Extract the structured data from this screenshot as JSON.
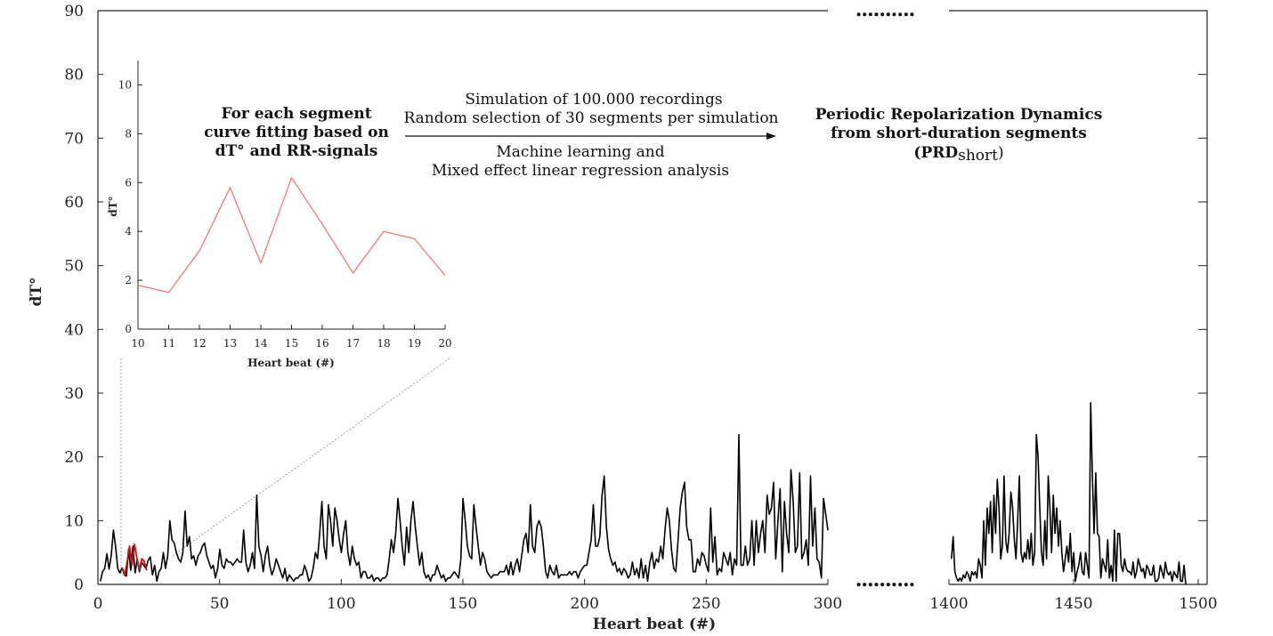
{
  "chart_data": [
    {
      "type": "line",
      "ylabel": "dT°",
      "xlabel": "Heart beat (#)",
      "ylim": [
        0,
        90
      ],
      "y_ticks": [
        "0",
        "10",
        "20",
        "30",
        "40",
        "50",
        "60",
        "70",
        "80",
        "90"
      ],
      "x_ticks_left": [
        "0",
        "50",
        "100",
        "150",
        "200",
        "250",
        "300"
      ],
      "x_ticks_right": [
        "1400",
        "1450",
        "1500"
      ],
      "break_marker": "..........",
      "colors": {
        "signal": "#000000",
        "segment": "#cc1111"
      },
      "series_left": {
        "x_start": 1,
        "values": [
          0.5,
          2,
          2.5,
          4.8,
          2.4,
          4.5,
          8.5,
          6,
          2.5,
          1.8,
          2.6,
          1.5,
          1.3,
          5.5,
          2.2,
          6,
          1.8,
          4,
          2,
          3.5,
          3,
          2.5,
          3.8,
          4.3,
          1.5,
          3,
          0.5,
          2,
          2.5,
          5,
          2.5,
          4.5,
          10,
          7,
          6.5,
          5,
          4,
          3.5,
          5,
          11.5,
          6,
          7.5,
          4,
          4.5,
          3,
          4.5,
          5,
          6,
          6.5,
          4.5,
          3.5,
          2.5,
          3,
          1,
          2.5,
          5.5,
          3,
          2.5,
          4,
          3.5,
          3.5,
          3,
          3.5,
          4,
          3.5,
          3.5,
          8.5,
          3.5,
          2,
          3,
          5,
          2.5,
          14,
          6,
          4.5,
          2,
          4.5,
          6,
          3,
          1.5,
          2.5,
          4,
          3,
          2,
          1,
          2.5,
          0.5,
          1.5,
          1,
          0.5,
          1,
          1,
          1.5,
          1.5,
          3,
          2,
          0.5,
          1,
          2.5,
          5,
          4,
          8,
          13,
          6,
          4,
          12.5,
          10,
          6,
          12,
          10,
          7,
          5,
          8,
          10,
          5,
          3,
          6,
          4,
          3,
          3.5,
          1,
          2,
          2,
          1,
          1,
          1.5,
          0.5,
          1,
          1,
          0.5,
          1,
          1,
          1.5,
          4,
          7,
          5,
          8,
          13.5,
          10,
          6,
          3,
          9,
          5,
          10,
          13,
          9,
          6,
          3,
          5,
          2,
          1,
          1.5,
          0.5,
          1.5,
          1.5,
          3,
          2,
          1,
          1.5,
          0.5,
          1,
          1,
          1.5,
          2,
          1.5,
          1,
          4,
          13.5,
          10,
          6,
          4.5,
          4,
          12.5,
          9,
          6,
          3,
          5,
          4,
          2,
          1.5,
          1,
          1.5,
          1.5,
          1.5,
          2,
          2,
          2,
          3,
          1.5,
          3.5,
          1.5,
          3,
          4,
          2,
          4.5,
          7,
          8,
          5,
          12.5,
          6,
          5,
          9,
          10,
          9,
          6,
          2,
          1,
          3,
          2,
          1.5,
          3,
          1,
          1.5,
          1.5,
          1.5,
          1.5,
          2,
          1.5,
          2,
          2,
          1,
          2,
          2.5,
          3,
          3,
          5,
          7,
          12.5,
          6,
          6,
          7.5,
          14,
          17,
          9,
          5.5,
          4,
          3,
          3.5,
          2,
          2.5,
          1.5,
          2.5,
          2,
          1,
          1.5,
          3.5,
          1.5,
          2.5,
          1,
          4,
          1,
          3,
          0.5,
          3.5,
          5,
          2.5,
          4,
          3.5,
          6,
          4,
          8.5,
          12,
          10,
          5.5,
          2.5,
          2,
          7,
          12,
          14.5,
          16,
          9,
          7,
          7,
          2,
          2,
          4,
          3,
          5,
          4.5,
          3,
          2,
          12,
          3.5,
          7.5,
          1.5,
          2.5,
          2,
          5,
          4,
          3,
          5,
          1.5,
          4,
          3,
          23.5,
          3,
          3,
          6,
          3,
          4,
          10,
          3,
          10,
          5,
          8,
          10,
          5,
          14,
          11,
          12,
          16,
          4,
          10,
          15,
          2,
          13,
          8,
          5,
          18,
          13,
          5,
          6,
          17.5,
          4,
          5,
          7,
          3,
          17,
          6,
          12,
          4,
          3.5,
          1,
          13.5,
          11,
          8.5
        ]
      },
      "segment": {
        "x": [
          10,
          11,
          12,
          13,
          14,
          15,
          16,
          17,
          18,
          19,
          20
        ],
        "values": [
          2.6,
          1.5,
          3.5,
          6,
          3,
          6.3,
          4.2,
          2.3,
          4,
          3.7,
          2.2
        ]
      },
      "series_right": {
        "x_start": 1401,
        "values": [
          4,
          7.5,
          2,
          1,
          0.5,
          1,
          0.5,
          1.5,
          1,
          2,
          1.5,
          0.5,
          2,
          1.5,
          2,
          1,
          4,
          3,
          1,
          10,
          3,
          12,
          8,
          13,
          5,
          14,
          8,
          16.5,
          12,
          4,
          6,
          17,
          7,
          5,
          8,
          14.5,
          12,
          7,
          4,
          10,
          17,
          5,
          3.5,
          5,
          4,
          7,
          4,
          8,
          3,
          5,
          23.5,
          20,
          12,
          5,
          3,
          10,
          4,
          17,
          12,
          5,
          14,
          8,
          12,
          6,
          10,
          5,
          2,
          4,
          6,
          3.5,
          8,
          2,
          5,
          0.5,
          2,
          3,
          5,
          2,
          1.5,
          5,
          3,
          1,
          28.5,
          17,
          8,
          17.5,
          8,
          7.5,
          1,
          4,
          3,
          2,
          7,
          1,
          3,
          0.5,
          8.5,
          0.5,
          8,
          8,
          3,
          2,
          4,
          2.5,
          2,
          2,
          1.5,
          3.5,
          1,
          2,
          4,
          3,
          2,
          2.5,
          1,
          3,
          2.5,
          1.5,
          1.5,
          3,
          0.5,
          0.5,
          1,
          3,
          2,
          1,
          3.5,
          2,
          1.5,
          2,
          0.5,
          2,
          1.5,
          1,
          3.5,
          0.5,
          0.5,
          3,
          0
        ]
      }
    },
    {
      "type": "line",
      "title": "",
      "xlabel": "Heart beat (#)",
      "ylabel": "dT°",
      "xlim": [
        10,
        20
      ],
      "ylim": [
        0,
        11
      ],
      "x_ticks": [
        "10",
        "11",
        "12",
        "13",
        "14",
        "15",
        "16",
        "17",
        "18",
        "19",
        "20"
      ],
      "y_ticks": [
        "0",
        "2",
        "4",
        "6",
        "8",
        "10"
      ],
      "colors": {
        "line": "#f08080"
      },
      "x": [
        10,
        11,
        12,
        13,
        14,
        15,
        16,
        17,
        18,
        19,
        20
      ],
      "values": [
        1.8,
        1.5,
        3.2,
        5.8,
        2.7,
        6.2,
        4.3,
        2.3,
        4,
        3.7,
        2.2
      ]
    }
  ],
  "annotations": {
    "left_block": [
      "For each segment",
      "curve fitting based on",
      "dT° and RR-signals"
    ],
    "arrow_top": [
      "Simulation of 100.000 recordings",
      "Random selection of 30 segments  per simulation"
    ],
    "arrow_bottom": [
      "Machine learning and",
      "Mixed effect linear regression analysis"
    ],
    "right_block": [
      "Periodic Repolarization Dynamics",
      "from short-duration segments"
    ],
    "right_block_abbr": {
      "open": "(",
      "main": "PRD",
      "sub": "short",
      "close": ")"
    }
  }
}
